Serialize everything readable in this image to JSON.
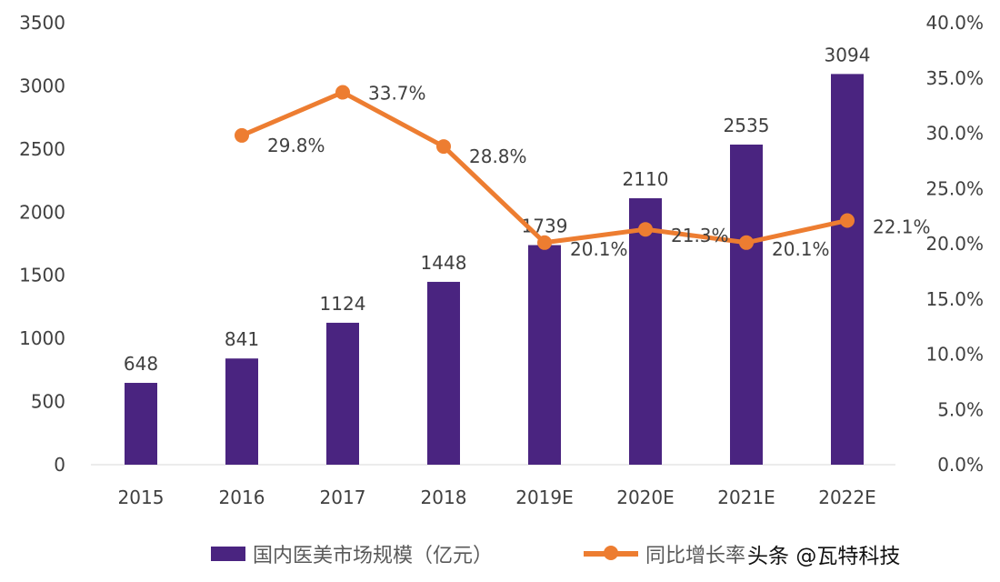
{
  "chart_data": {
    "type": "bar+line",
    "categories": [
      "2015",
      "2016",
      "2017",
      "2018",
      "2019E",
      "2020E",
      "2021E",
      "2022E"
    ],
    "series": [
      {
        "name": "国内医美市场规模（亿元）",
        "type": "bar",
        "axis": "left",
        "color": "#4a2480",
        "values": [
          648,
          841,
          1124,
          1448,
          1739,
          2110,
          2535,
          3094
        ],
        "labels": [
          "648",
          "841",
          "1124",
          "1448",
          "1739",
          "2110",
          "2535",
          "3094"
        ]
      },
      {
        "name": "同比增长率",
        "type": "line",
        "axis": "right",
        "color": "#ed7d31",
        "values": [
          null,
          29.8,
          33.7,
          28.8,
          20.1,
          21.3,
          20.1,
          22.1
        ],
        "labels": [
          null,
          "29.8%",
          "33.7%",
          "28.8%",
          "20.1%",
          "21.3%",
          "20.1%",
          "22.1%"
        ]
      }
    ],
    "left_axis": {
      "range": [
        0,
        3500
      ],
      "ticks": [
        "0",
        "500",
        "1000",
        "1500",
        "2000",
        "2500",
        "3000",
        "3500"
      ]
    },
    "right_axis": {
      "range": [
        0,
        40
      ],
      "ticks": [
        "0.0%",
        "5.0%",
        "10.0%",
        "15.0%",
        "20.0%",
        "25.0%",
        "30.0%",
        "35.0%",
        "40.0%"
      ]
    },
    "grid": false,
    "legend": "bottom"
  },
  "watermark": "头条 @瓦特科技"
}
